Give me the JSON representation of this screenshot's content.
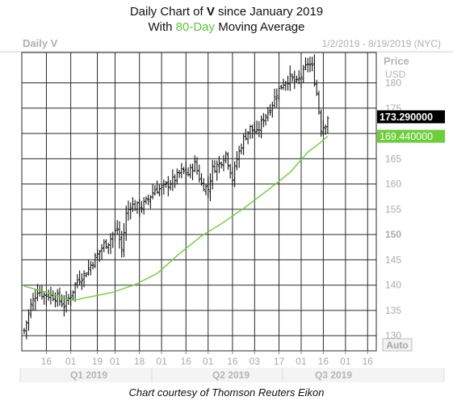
{
  "title": {
    "line1_prefix": "Daily Chart of ",
    "line1_symbol": "V",
    "line1_suffix": " since January 2019",
    "line2_prefix": "With ",
    "line2_highlight": "80-Day",
    "line2_suffix": " Moving Average"
  },
  "header": {
    "left": "Daily V",
    "right": "1/2/2019 - 8/19/2019 (NYC)"
  },
  "axis": {
    "price_label": "Price",
    "currency_label": "USD",
    "auto_label": "Auto",
    "y_ticks": [
      130,
      135,
      140,
      145,
      150,
      155,
      160,
      165,
      170,
      175,
      180
    ],
    "x_tick_labels": [
      "16",
      "01",
      "19",
      "01",
      "18",
      "01",
      "16",
      "01",
      "16",
      "03",
      "17",
      "01",
      "16",
      "01",
      "16"
    ],
    "quarters": [
      "Q1 2019",
      "Q2 2019",
      "Q3 2019"
    ]
  },
  "badges": {
    "last_price": "173.290000",
    "ma_value": "169.440000"
  },
  "colors": {
    "ma_line": "#6ccf3a",
    "last_price_badge": "#000000",
    "ma_badge": "#6ccf3a",
    "grid": "#2a2a2a",
    "header_text": "#b0b0b0"
  },
  "credit": "Chart courtesy of Thomson Reuters Eikon",
  "chart_data": {
    "type": "ohlc",
    "ylim": [
      127,
      186
    ],
    "trading_days": 160,
    "series": [
      {
        "name": "V",
        "kind": "price_bars",
        "close_path": [
          [
            0,
            131
          ],
          [
            3,
            136
          ],
          [
            6,
            139
          ],
          [
            9,
            138
          ],
          [
            12,
            138
          ],
          [
            15,
            137.5
          ],
          [
            18,
            136
          ],
          [
            21,
            138
          ],
          [
            24,
            141
          ],
          [
            27,
            142
          ],
          [
            30,
            144
          ],
          [
            33,
            146
          ],
          [
            36,
            148
          ],
          [
            38,
            148.5
          ],
          [
            40,
            150
          ],
          [
            42,
            151
          ],
          [
            44,
            147
          ],
          [
            46,
            154
          ],
          [
            48,
            156
          ],
          [
            50,
            155.5
          ],
          [
            53,
            155.5
          ],
          [
            56,
            157
          ],
          [
            59,
            159
          ],
          [
            62,
            159
          ],
          [
            65,
            160
          ],
          [
            68,
            161
          ],
          [
            71,
            162.5
          ],
          [
            74,
            162
          ],
          [
            77,
            164
          ],
          [
            80,
            160
          ],
          [
            83,
            159
          ],
          [
            85,
            163
          ],
          [
            88,
            164
          ],
          [
            91,
            166
          ],
          [
            94,
            161
          ],
          [
            96,
            165
          ],
          [
            99,
            169
          ],
          [
            102,
            171
          ],
          [
            105,
            170
          ],
          [
            108,
            173
          ],
          [
            111,
            175
          ],
          [
            114,
            178
          ],
          [
            117,
            180
          ],
          [
            120,
            181
          ],
          [
            123,
            180
          ],
          [
            126,
            182
          ],
          [
            128,
            184
          ],
          [
            130,
            183
          ],
          [
            132,
            178
          ],
          [
            134,
            171
          ],
          [
            136,
            172
          ],
          [
            137,
            173.29
          ]
        ]
      },
      {
        "name": "80-Day",
        "kind": "moving_average",
        "points": [
          [
            0,
            139.8
          ],
          [
            10,
            138.6
          ],
          [
            18,
            137.4
          ],
          [
            22,
            137
          ],
          [
            30,
            137.7
          ],
          [
            40,
            138.6
          ],
          [
            50,
            140.1
          ],
          [
            60,
            142.3
          ],
          [
            70,
            146.2
          ],
          [
            80,
            149.7
          ],
          [
            90,
            152.4
          ],
          [
            100,
            155.5
          ],
          [
            110,
            158.8
          ],
          [
            120,
            162.3
          ],
          [
            128,
            166.3
          ],
          [
            134,
            168.3
          ],
          [
            137,
            169.44
          ]
        ]
      }
    ]
  }
}
